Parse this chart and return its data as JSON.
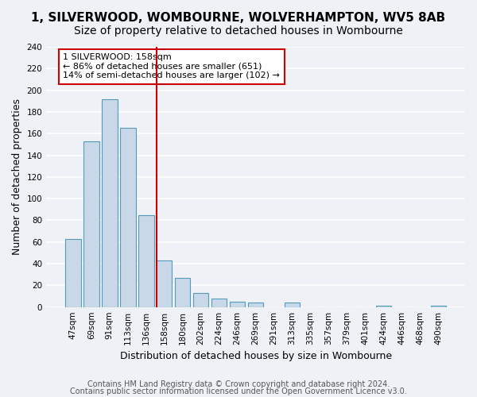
{
  "title": "1, SILVERWOOD, WOMBOURNE, WOLVERHAMPTON, WV5 8AB",
  "subtitle": "Size of property relative to detached houses in Wombourne",
  "xlabel": "Distribution of detached houses by size in Wombourne",
  "ylabel": "Number of detached properties",
  "bar_color": "#c8d8e8",
  "bar_edge_color": "#5599bb",
  "categories": [
    "47sqm",
    "69sqm",
    "91sqm",
    "113sqm",
    "136sqm",
    "158sqm",
    "180sqm",
    "202sqm",
    "224sqm",
    "246sqm",
    "269sqm",
    "291sqm",
    "313sqm",
    "335sqm",
    "357sqm",
    "379sqm",
    "401sqm",
    "424sqm",
    "446sqm",
    "468sqm",
    "490sqm"
  ],
  "values": [
    63,
    153,
    192,
    165,
    85,
    43,
    27,
    13,
    8,
    5,
    4,
    0,
    4,
    0,
    0,
    0,
    0,
    1,
    0,
    0,
    1
  ],
  "highlight_index": 5,
  "highlight_line_color": "#cc0000",
  "annotation_line1": "1 SILVERWOOD: 158sqm",
  "annotation_line2": "← 86% of detached houses are smaller (651)",
  "annotation_line3": "14% of semi-detached houses are larger (102) →",
  "annotation_box_color": "#ffffff",
  "annotation_box_edge_color": "#cc0000",
  "footer_line1": "Contains HM Land Registry data © Crown copyright and database right 2024.",
  "footer_line2": "Contains public sector information licensed under the Open Government Licence v3.0.",
  "ylim": [
    0,
    240
  ],
  "background_color": "#eef2f7",
  "plot_background_color": "#eef2f7",
  "grid_color": "#ffffff",
  "title_fontsize": 11,
  "subtitle_fontsize": 10,
  "axis_fontsize": 9,
  "tick_fontsize": 7.5,
  "footer_fontsize": 7
}
